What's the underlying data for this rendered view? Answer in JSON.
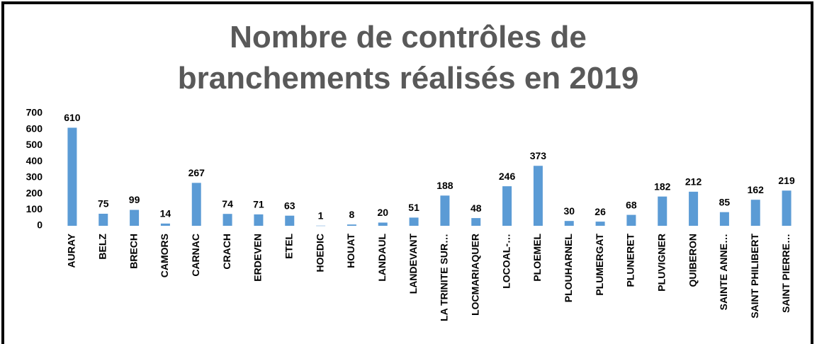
{
  "chart_data": {
    "type": "bar",
    "title": "Nombre de contrôles de branchements réalisés en 2019",
    "categories": [
      "AURAY",
      "BELZ",
      "BRECH",
      "CAMORS",
      "CARNAC",
      "CRACH",
      "ERDEVEN",
      "ETEL",
      "HOEDIC",
      "HOUAT",
      "LANDAUL",
      "LANDEVANT",
      "LA TRINITE SUR…",
      "LOCMARIAQUER",
      "LOCOAL-…",
      "PLOEMEL",
      "PLOUHARNEL",
      "PLUMERGAT",
      "PLUNERET",
      "PLUVIGNER",
      "QUIBERON",
      "SAINTE ANNE…",
      "SAINT PHILIBERT",
      "SAINT PIERRE…"
    ],
    "values": [
      610,
      75,
      99,
      14,
      267,
      74,
      71,
      63,
      1,
      8,
      20,
      51,
      188,
      48,
      246,
      373,
      30,
      26,
      68,
      182,
      212,
      85,
      162,
      219
    ],
    "color": "#5b9bd5",
    "ylim": [
      0,
      700
    ],
    "yticks": [
      0,
      100,
      200,
      300,
      400,
      500,
      600,
      700
    ],
    "grid": false
  }
}
